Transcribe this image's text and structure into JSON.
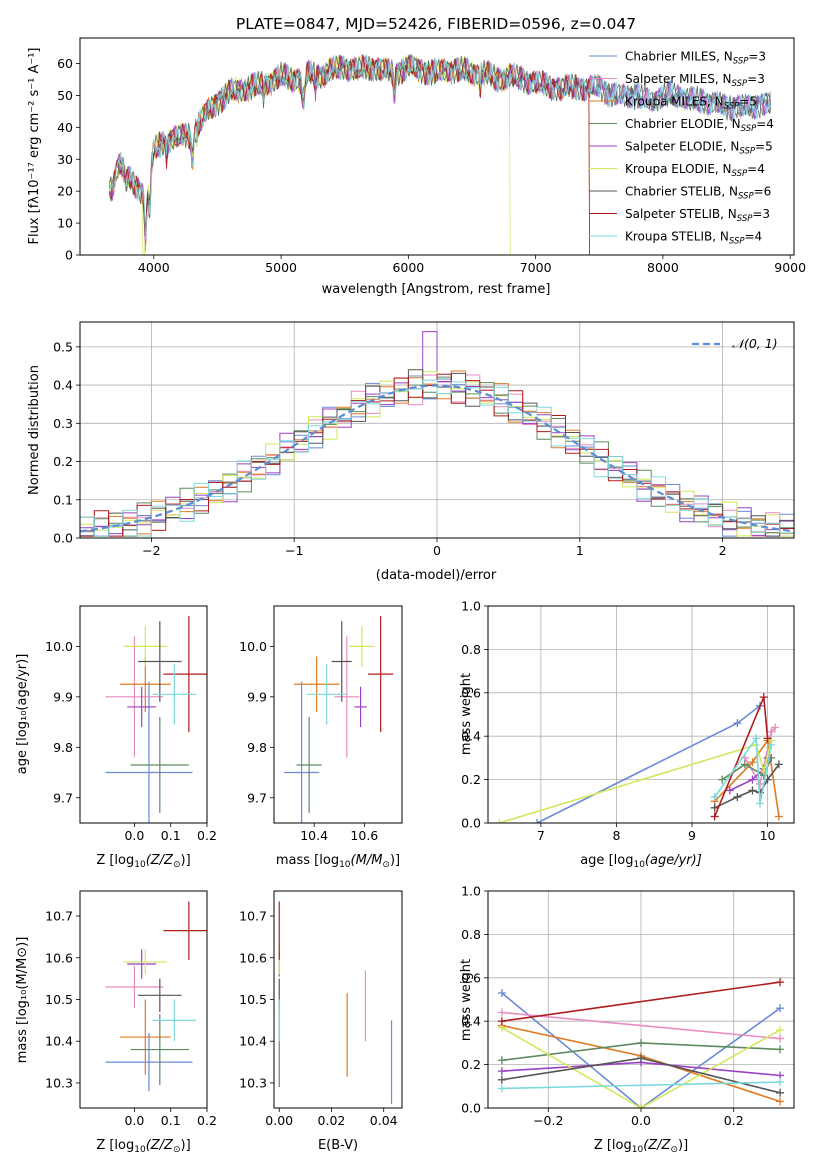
{
  "figure": {
    "title": "PLATE=0847, MJD=52426, FIBERID=0596, z=0.047"
  },
  "colors": {
    "Chabrier MILES": "#6a8bd6",
    "Salpeter MILES": "#e98cc0",
    "Kroupa MILES": "#e07a22",
    "Chabrier ELODIE": "#5e8a5e",
    "Salpeter ELODIE": "#9b42c4",
    "Kroupa ELODIE": "#d2e85c",
    "Chabrier STELIB": "#555555",
    "Salpeter STELIB": "#b01c1c",
    "Kroupa STELIB": "#7dd8de"
  },
  "chart_data": [
    {
      "id": "spectrum",
      "type": "line",
      "title": "PLATE=0847, MJD=52426, FIBERID=0596, z=0.047",
      "xlabel": "wavelength [Angstrom, rest frame]",
      "ylabel": "Flux [fλ10⁻¹⁷ erg cm⁻² s⁻¹ A⁻¹]",
      "xlim": [
        3420,
        9030
      ],
      "ylim": [
        0,
        68
      ],
      "xticks": [
        4000,
        5000,
        6000,
        7000,
        8000,
        9000
      ],
      "yticks": [
        0,
        10,
        20,
        30,
        40,
        50,
        60
      ],
      "legend_position": "top-right",
      "continuum": {
        "x": [
          3650,
          3700,
          3800,
          3900,
          3950,
          4000,
          4100,
          4200,
          4300,
          4400,
          4500,
          4600,
          4700,
          4800,
          4900,
          5000,
          5100,
          5200,
          5300,
          5400,
          5500,
          5600,
          5700,
          5800,
          5900,
          6000,
          6100,
          6200,
          6300,
          6400,
          6500,
          6600,
          6700,
          6800,
          6900,
          7000,
          7100,
          7200,
          7300,
          7400,
          7500,
          7600,
          7700,
          7800,
          7900,
          8000,
          8100,
          8200,
          8300,
          8400,
          8500,
          8600,
          8700,
          8800,
          8850
        ],
        "y": [
          22,
          27,
          24,
          20,
          18,
          33,
          36,
          37,
          38,
          44,
          48,
          51,
          52,
          53,
          54,
          56,
          55,
          57,
          56,
          58,
          59,
          58,
          59,
          58,
          57,
          59,
          58,
          57,
          58,
          58,
          57,
          57,
          55,
          56,
          55,
          54,
          53,
          52,
          53,
          52,
          53,
          50,
          50,
          50,
          48,
          50,
          50,
          49,
          48,
          48,
          46,
          47,
          46,
          48,
          47
        ]
      },
      "series": [
        {
          "name": "Chabrier MILES, N_SSP=3",
          "lib": "Chabrier MILES",
          "label_text": "Chabrier MILES, N",
          "label_sub": "SSP",
          "label_tail": "=3",
          "phase": 1.1
        },
        {
          "name": "Salpeter MILES, N_SSP=3",
          "lib": "Salpeter MILES",
          "label_text": "Salpeter MILES, N",
          "label_sub": "SSP",
          "label_tail": "=3",
          "phase": 2.3
        },
        {
          "name": "Kroupa MILES, N_SSP=5",
          "lib": "Kroupa MILES",
          "label_text": "Kroupa MILES, N",
          "label_sub": "SSP",
          "label_tail": "=5",
          "phase": 0.7,
          "drop_at": 7420
        },
        {
          "name": "Chabrier ELODIE, N_SSP=4",
          "lib": "Chabrier ELODIE",
          "label_text": "Chabrier ELODIE, N",
          "label_sub": "SSP",
          "label_tail": "=4",
          "phase": 3.1
        },
        {
          "name": "Salpeter ELODIE, N_SSP=5",
          "lib": "Salpeter ELODIE",
          "label_text": "Salpeter ELODIE, N",
          "label_sub": "SSP",
          "label_tail": "=5",
          "phase": 1.9
        },
        {
          "name": "Kroupa ELODIE, N_SSP=4",
          "lib": "Kroupa ELODIE",
          "label_text": "Kroupa ELODIE, N",
          "label_sub": "SSP",
          "label_tail": "=4",
          "phase": 4.2,
          "drop_at": 6800,
          "dip_at": 3920
        },
        {
          "name": "Chabrier STELIB, N_SSP=6",
          "lib": "Chabrier STELIB",
          "label_text": "Chabrier STELIB, N",
          "label_sub": "SSP",
          "label_tail": "=6",
          "phase": 5.0
        },
        {
          "name": "Salpeter STELIB, N_SSP=3",
          "lib": "Salpeter STELIB",
          "label_text": "Salpeter STELIB, N",
          "label_sub": "SSP",
          "label_tail": "=3",
          "phase": 2.8,
          "drop_at": 7420
        },
        {
          "name": "Kroupa STELIB, N_SSP=4",
          "lib": "Kroupa STELIB",
          "label_text": "Kroupa STELIB, N",
          "label_sub": "SSP",
          "label_tail": "=4",
          "phase": 0.3
        }
      ]
    },
    {
      "id": "residuals",
      "type": "area",
      "xlabel": "(data-model)/error",
      "ylabel": "Normed distribution",
      "xlim": [
        -2.5,
        2.5
      ],
      "ylim": [
        0,
        0.565
      ],
      "xticks": [
        -2,
        -1,
        0,
        1,
        2
      ],
      "yticks": [
        0.0,
        0.1,
        0.2,
        0.3,
        0.4,
        0.5
      ],
      "grid": true,
      "bin_width": 0.1,
      "reference": {
        "name": "N(0,1)",
        "label": "𝒩(0, 1)",
        "color": "#5b8ed6",
        "style": "dashed"
      },
      "legend_position": "top-right",
      "series_libs": [
        "Chabrier MILES",
        "Salpeter MILES",
        "Kroupa MILES",
        "Chabrier ELODIE",
        "Salpeter ELODIE",
        "Kroupa ELODIE",
        "Chabrier STELIB",
        "Salpeter STELIB",
        "Kroupa STELIB"
      ]
    },
    {
      "id": "age-vs-Z",
      "type": "scatter",
      "xlabel_main": "Z [log",
      "xlabel_sub": "10",
      "xlabel_tail": "(Z/Z",
      "xlabel_sun": "⊙",
      "xlabel_end": ")]",
      "ylabel": "age  [log₁₀(age/yr)]",
      "xlim": [
        -0.15,
        0.2
      ],
      "ylim": [
        9.65,
        10.08
      ],
      "xticks": [
        0.0,
        0.1,
        0.2
      ],
      "yticks": [
        9.7,
        9.8,
        9.9,
        10.0
      ],
      "points": [
        {
          "lib": "Chabrier MILES",
          "x": 0.04,
          "y": 9.75,
          "xerr": 0.12,
          "yerr": 0.18
        },
        {
          "lib": "Salpeter MILES",
          "x": 0.0,
          "y": 9.9,
          "xerr": 0.08,
          "yerr": 0.12
        },
        {
          "lib": "Kroupa MILES",
          "x": 0.03,
          "y": 9.925,
          "xerr": 0.07,
          "yerr": 0.055
        },
        {
          "lib": "Chabrier ELODIE",
          "x": 0.07,
          "y": 9.765,
          "xerr": 0.08,
          "yerr": 0.095
        },
        {
          "lib": "Salpeter ELODIE",
          "x": 0.02,
          "y": 9.88,
          "xerr": 0.04,
          "yerr": 0.04
        },
        {
          "lib": "Kroupa ELODIE",
          "x": 0.03,
          "y": 10.0,
          "xerr": 0.06,
          "yerr": 0.04
        },
        {
          "lib": "Chabrier STELIB",
          "x": 0.07,
          "y": 9.97,
          "xerr": 0.06,
          "yerr": 0.08
        },
        {
          "lib": "Salpeter STELIB",
          "x": 0.15,
          "y": 9.945,
          "xerr": 0.07,
          "yerr": 0.115
        },
        {
          "lib": "Kroupa STELIB",
          "x": 0.11,
          "y": 9.905,
          "xerr": 0.06,
          "yerr": 0.06
        }
      ]
    },
    {
      "id": "age-vs-mass",
      "type": "scatter",
      "xlabel_main": "mass [log",
      "xlabel_sub": "10",
      "xlabel_tail": "(M/M",
      "xlabel_sun": "⊙",
      "xlabel_end": ")]",
      "ylabel": "",
      "xlim": [
        10.24,
        10.75
      ],
      "ylim": [
        9.65,
        10.08
      ],
      "xticks": [
        10.4,
        10.6
      ],
      "yticks": [
        9.7,
        9.8,
        9.9,
        10.0
      ],
      "points": [
        {
          "lib": "Chabrier MILES",
          "x": 10.35,
          "y": 9.75,
          "xerr": 0.07,
          "yerr": 0.18
        },
        {
          "lib": "Salpeter MILES",
          "x": 10.53,
          "y": 9.9,
          "xerr": 0.05,
          "yerr": 0.12
        },
        {
          "lib": "Kroupa MILES",
          "x": 10.41,
          "y": 9.925,
          "xerr": 0.09,
          "yerr": 0.055
        },
        {
          "lib": "Chabrier ELODIE",
          "x": 10.38,
          "y": 9.765,
          "xerr": 0.05,
          "yerr": 0.095
        },
        {
          "lib": "Salpeter ELODIE",
          "x": 10.585,
          "y": 9.88,
          "xerr": 0.025,
          "yerr": 0.04
        },
        {
          "lib": "Kroupa ELODIE",
          "x": 10.59,
          "y": 10.0,
          "xerr": 0.05,
          "yerr": 0.04
        },
        {
          "lib": "Chabrier STELIB",
          "x": 10.51,
          "y": 9.97,
          "xerr": 0.04,
          "yerr": 0.08
        },
        {
          "lib": "Salpeter STELIB",
          "x": 10.665,
          "y": 9.945,
          "xerr": 0.05,
          "yerr": 0.115
        },
        {
          "lib": "Kroupa STELIB",
          "x": 10.45,
          "y": 9.905,
          "xerr": 0.08,
          "yerr": 0.06
        }
      ]
    },
    {
      "id": "weight-vs-age",
      "type": "line",
      "xlabel_main": "age  [log",
      "xlabel_sub": "10",
      "xlabel_tail": "(age/yr)]",
      "ylabel": "mass weight",
      "xlim": [
        6.3,
        10.35
      ],
      "ylim": [
        0,
        1
      ],
      "xticks": [
        7,
        8,
        9,
        10
      ],
      "yticks": [
        0.0,
        0.2,
        0.4,
        0.6,
        0.8,
        1.0
      ],
      "grid": true,
      "series": [
        {
          "lib": "Chabrier MILES",
          "x": [
            6.95,
            9.6,
            9.9
          ],
          "y": [
            0.0,
            0.46,
            0.54
          ]
        },
        {
          "lib": "Salpeter MILES",
          "x": [
            9.7,
            9.9,
            10.05,
            10.1
          ],
          "y": [
            0.3,
            0.18,
            0.42,
            0.44
          ]
        },
        {
          "lib": "Kroupa MILES",
          "x": [
            9.3,
            9.8,
            10.0,
            10.15
          ],
          "y": [
            0.1,
            0.28,
            0.38,
            0.03
          ]
        },
        {
          "lib": "Chabrier ELODIE",
          "x": [
            9.4,
            9.7,
            9.95,
            10.05
          ],
          "y": [
            0.2,
            0.27,
            0.22,
            0.3
          ]
        },
        {
          "lib": "Salpeter ELODIE",
          "x": [
            9.5,
            9.8,
            9.95,
            10.0
          ],
          "y": [
            0.15,
            0.2,
            0.25,
            0.3
          ]
        },
        {
          "lib": "Kroupa ELODIE",
          "x": [
            6.45,
            9.85,
            9.95,
            10.05
          ],
          "y": [
            0.0,
            0.36,
            0.24,
            0.38
          ]
        },
        {
          "lib": "Chabrier STELIB",
          "x": [
            9.3,
            9.6,
            9.8,
            9.9,
            10.0,
            10.15
          ],
          "y": [
            0.07,
            0.12,
            0.15,
            0.14,
            0.2,
            0.27
          ]
        },
        {
          "lib": "Salpeter STELIB",
          "x": [
            9.3,
            9.95,
            10.0
          ],
          "y": [
            0.03,
            0.58,
            0.39
          ]
        },
        {
          "lib": "Kroupa STELIB",
          "x": [
            9.3,
            9.85,
            9.9,
            10.05
          ],
          "y": [
            0.12,
            0.39,
            0.09,
            0.36
          ]
        }
      ]
    },
    {
      "id": "mass-vs-Z",
      "type": "scatter",
      "xlabel_main": "Z [log",
      "xlabel_sub": "10",
      "xlabel_tail": "(Z/Z",
      "xlabel_sun": "⊙",
      "xlabel_end": ")]",
      "ylabel": "mass [log₁₀(M/M⊙)]",
      "xlim": [
        -0.15,
        0.2
      ],
      "ylim": [
        10.24,
        10.76
      ],
      "xticks": [
        0.0,
        0.1,
        0.2
      ],
      "yticks": [
        10.3,
        10.4,
        10.5,
        10.6,
        10.7
      ],
      "points": [
        {
          "lib": "Chabrier MILES",
          "x": 0.04,
          "y": 10.35,
          "xerr": 0.12,
          "yerr": 0.07
        },
        {
          "lib": "Salpeter MILES",
          "x": 0.0,
          "y": 10.53,
          "xerr": 0.08,
          "yerr": 0.05
        },
        {
          "lib": "Kroupa MILES",
          "x": 0.03,
          "y": 10.41,
          "xerr": 0.07,
          "yerr": 0.09
        },
        {
          "lib": "Chabrier ELODIE",
          "x": 0.07,
          "y": 10.38,
          "xerr": 0.08,
          "yerr": 0.085
        },
        {
          "lib": "Salpeter ELODIE",
          "x": 0.02,
          "y": 10.585,
          "xerr": 0.04,
          "yerr": 0.035
        },
        {
          "lib": "Kroupa ELODIE",
          "x": 0.03,
          "y": 10.59,
          "xerr": 0.06,
          "yerr": 0.03
        },
        {
          "lib": "Chabrier STELIB",
          "x": 0.07,
          "y": 10.51,
          "xerr": 0.06,
          "yerr": 0.04
        },
        {
          "lib": "Salpeter STELIB",
          "x": 0.15,
          "y": 10.665,
          "xerr": 0.07,
          "yerr": 0.07
        },
        {
          "lib": "Kroupa STELIB",
          "x": 0.11,
          "y": 10.45,
          "xerr": 0.06,
          "yerr": 0.05
        }
      ]
    },
    {
      "id": "mass-vs-ebv",
      "type": "scatter",
      "xlabel": "E(B-V)",
      "ylabel": "",
      "xlim": [
        -0.002,
        0.047
      ],
      "ylim": [
        10.24,
        10.76
      ],
      "xticks": [
        0.0,
        0.02,
        0.04
      ],
      "yticks": [
        10.3,
        10.4,
        10.5,
        10.6,
        10.7
      ],
      "points": [
        {
          "lib": "Chabrier MILES",
          "x": 0.043,
          "y": 10.35,
          "yerr": 0.1
        },
        {
          "lib": "Salpeter MILES",
          "x": 0.033,
          "y": 10.485,
          "yerr": 0.085
        },
        {
          "lib": "Kroupa MILES",
          "x": 0.026,
          "y": 10.415,
          "yerr": 0.1
        },
        {
          "lib": "Chabrier ELODIE",
          "x": 0.0,
          "y": 10.38,
          "yerr": 0.09
        },
        {
          "lib": "Salpeter ELODIE",
          "x": 0.0,
          "y": 10.585,
          "yerr": 0.03
        },
        {
          "lib": "Kroupa ELODIE",
          "x": 0.0,
          "y": 10.59,
          "yerr": 0.03
        },
        {
          "lib": "Chabrier STELIB",
          "x": 0.0,
          "y": 10.51,
          "yerr": 0.04
        },
        {
          "lib": "Salpeter STELIB",
          "x": 0.0,
          "y": 10.665,
          "yerr": 0.07
        },
        {
          "lib": "Kroupa STELIB",
          "x": 0.0,
          "y": 10.45,
          "yerr": 0.05
        }
      ]
    },
    {
      "id": "weight-vs-Z",
      "type": "line",
      "xlabel_main": "Z [log",
      "xlabel_sub": "10",
      "xlabel_tail": "(Z/Z",
      "xlabel_sun": "⊙",
      "xlabel_end": ")]",
      "ylabel": "mass weight",
      "xlim": [
        -0.33,
        0.33
      ],
      "ylim": [
        0,
        1
      ],
      "xticks": [
        -0.2,
        0.0,
        0.2
      ],
      "yticks": [
        0.0,
        0.2,
        0.4,
        0.6,
        0.8,
        1.0
      ],
      "grid": true,
      "series": [
        {
          "lib": "Chabrier MILES",
          "x": [
            -0.3,
            0.0,
            0.3
          ],
          "y": [
            0.53,
            0.0,
            0.46
          ]
        },
        {
          "lib": "Salpeter MILES",
          "x": [
            -0.3,
            0.3
          ],
          "y": [
            0.44,
            0.32
          ]
        },
        {
          "lib": "Kroupa MILES",
          "x": [
            -0.3,
            0.0,
            0.3
          ],
          "y": [
            0.38,
            0.24,
            0.03
          ]
        },
        {
          "lib": "Chabrier ELODIE",
          "x": [
            -0.3,
            0.0,
            0.3
          ],
          "y": [
            0.22,
            0.3,
            0.27
          ]
        },
        {
          "lib": "Salpeter ELODIE",
          "x": [
            -0.3,
            0.0,
            0.3
          ],
          "y": [
            0.17,
            0.21,
            0.15
          ]
        },
        {
          "lib": "Kroupa ELODIE",
          "x": [
            -0.3,
            0.0,
            0.3
          ],
          "y": [
            0.37,
            0.0,
            0.36
          ]
        },
        {
          "lib": "Chabrier STELIB",
          "x": [
            -0.3,
            0.0,
            0.3
          ],
          "y": [
            0.13,
            0.23,
            0.07
          ]
        },
        {
          "lib": "Salpeter STELIB",
          "x": [
            -0.3,
            0.3
          ],
          "y": [
            0.4,
            0.58
          ]
        },
        {
          "lib": "Kroupa STELIB",
          "x": [
            -0.3,
            0.3
          ],
          "y": [
            0.09,
            0.12
          ]
        }
      ]
    }
  ]
}
